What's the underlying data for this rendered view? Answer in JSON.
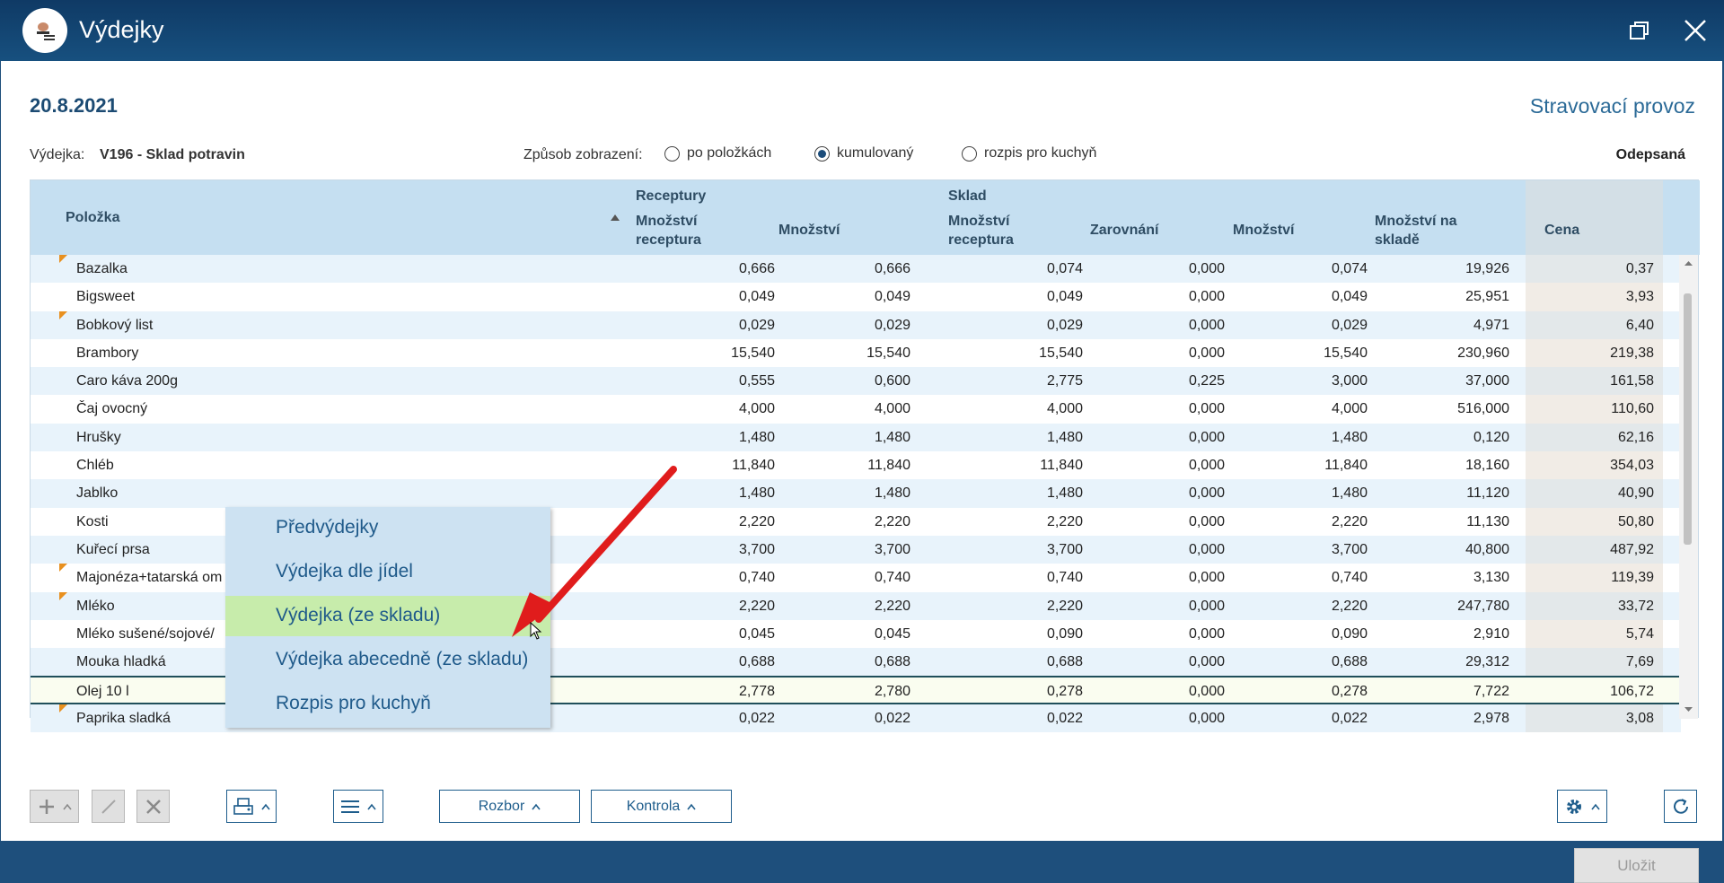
{
  "window": {
    "title": "Výdejky",
    "restore_icon": "restore-icon",
    "close_icon": "close-icon"
  },
  "header": {
    "date": "20.8.2021",
    "organization": "Stravovací provoz"
  },
  "info": {
    "vydejka_label": "Výdejka:",
    "vydejka_value": "V196 - Sklad potravin",
    "mode_label": "Způsob zobrazení:",
    "modes": [
      "po položkách",
      "kumulovaný",
      "rozpis pro kuchyň"
    ],
    "selected_mode": "kumulovaný",
    "status": "Odepsaná"
  },
  "table": {
    "group_receptury": "Receptury",
    "group_sklad": "Sklad",
    "col_polozka": "Položka",
    "col_r_mnozstvi_receptura_1": "Množství",
    "col_r_mnozstvi_receptura_2": "receptura",
    "col_r_mnozstvi": "Množství",
    "col_s_mnozstvi_receptura_1": "Množství",
    "col_s_mnozstvi_receptura_2": "receptura",
    "col_s_zarovnani": "Zarovnání",
    "col_s_mnozstvi": "Množství",
    "col_s_na_sklade_1": "Množství na",
    "col_s_na_sklade_2": "skladě",
    "col_cena": "Cena",
    "rows": [
      {
        "name": "Bazalka",
        "flag": true,
        "v": [
          "0,666",
          "0,666",
          "0,074",
          "0,000",
          "0,074",
          "19,926",
          "0,37"
        ]
      },
      {
        "name": "Bigsweet",
        "flag": false,
        "v": [
          "0,049",
          "0,049",
          "0,049",
          "0,000",
          "0,049",
          "25,951",
          "3,93"
        ]
      },
      {
        "name": "Bobkový list",
        "flag": true,
        "v": [
          "0,029",
          "0,029",
          "0,029",
          "0,000",
          "0,029",
          "4,971",
          "6,40"
        ]
      },
      {
        "name": "Brambory",
        "flag": false,
        "v": [
          "15,540",
          "15,540",
          "15,540",
          "0,000",
          "15,540",
          "230,960",
          "219,38"
        ]
      },
      {
        "name": "Caro káva 200g",
        "flag": false,
        "v": [
          "0,555",
          "0,600",
          "2,775",
          "0,225",
          "3,000",
          "37,000",
          "161,58"
        ]
      },
      {
        "name": "Čaj ovocný",
        "flag": false,
        "v": [
          "4,000",
          "4,000",
          "4,000",
          "0,000",
          "4,000",
          "516,000",
          "110,60"
        ]
      },
      {
        "name": "Hrušky",
        "flag": false,
        "v": [
          "1,480",
          "1,480",
          "1,480",
          "0,000",
          "1,480",
          "0,120",
          "62,16"
        ]
      },
      {
        "name": "Chléb",
        "flag": false,
        "v": [
          "11,840",
          "11,840",
          "11,840",
          "0,000",
          "11,840",
          "18,160",
          "354,03"
        ]
      },
      {
        "name": "Jablko",
        "flag": false,
        "v": [
          "1,480",
          "1,480",
          "1,480",
          "0,000",
          "1,480",
          "11,120",
          "40,90"
        ]
      },
      {
        "name": "Kosti",
        "flag": false,
        "v": [
          "2,220",
          "2,220",
          "2,220",
          "0,000",
          "2,220",
          "11,130",
          "50,80"
        ]
      },
      {
        "name": "Kuřecí prsa",
        "flag": false,
        "v": [
          "3,700",
          "3,700",
          "3,700",
          "0,000",
          "3,700",
          "40,800",
          "487,92"
        ]
      },
      {
        "name": "Majonéza+tatarská om",
        "flag": true,
        "v": [
          "0,740",
          "0,740",
          "0,740",
          "0,000",
          "0,740",
          "3,130",
          "119,39"
        ]
      },
      {
        "name": "Mléko",
        "flag": true,
        "v": [
          "2,220",
          "2,220",
          "2,220",
          "0,000",
          "2,220",
          "247,780",
          "33,72"
        ]
      },
      {
        "name": "Mléko sušené/sojové/",
        "flag": false,
        "v": [
          "0,045",
          "0,045",
          "0,090",
          "0,000",
          "0,090",
          "2,910",
          "5,74"
        ]
      },
      {
        "name": "Mouka hladká",
        "flag": false,
        "v": [
          "0,688",
          "0,688",
          "0,688",
          "0,000",
          "0,688",
          "29,312",
          "7,69"
        ]
      },
      {
        "name": "Olej 10 l",
        "flag": false,
        "v": [
          "2,778",
          "2,780",
          "0,278",
          "0,000",
          "0,278",
          "7,722",
          "106,72"
        ]
      },
      {
        "name": "Paprika sladká",
        "flag": true,
        "v": [
          "0,022",
          "0,022",
          "0,022",
          "0,000",
          "0,022",
          "2,978",
          "3,08"
        ]
      }
    ]
  },
  "selected_row": "Olej 10 l",
  "menu": {
    "items": [
      "Předvýdejky",
      "Výdejka dle jídel",
      "Výdejka (ze skladu)",
      "Výdejka abecedně (ze skladu)",
      "Rozpis pro kuchyň"
    ],
    "highlighted": "Výdejka (ze skladu)"
  },
  "toolbar": {
    "rozbor": "Rozbor",
    "kontrola": "Kontrola",
    "ulozit": "Uložit"
  }
}
